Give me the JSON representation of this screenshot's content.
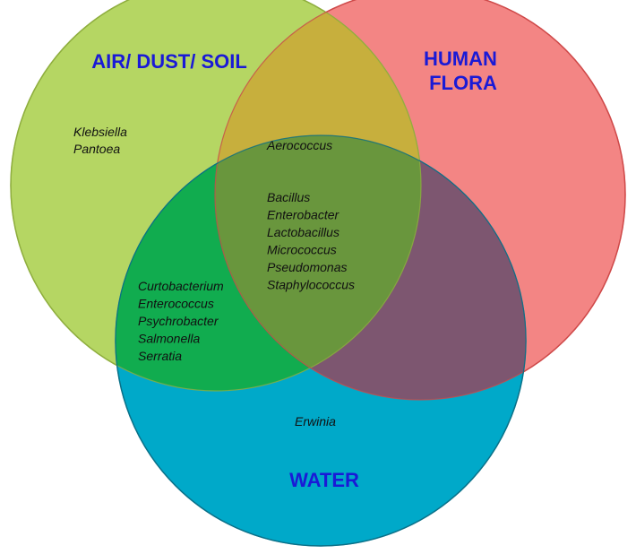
{
  "diagram": {
    "type": "venn",
    "sets": [
      {
        "id": "air",
        "title_lines": [
          "AIR/ DUST/ SOIL"
        ],
        "color": "#b5d663"
      },
      {
        "id": "human",
        "title_lines": [
          "HUMAN",
          "FLORA"
        ],
        "color": "#f38584"
      },
      {
        "id": "water",
        "title_lines": [
          "WATER"
        ],
        "color": "#00a9c9"
      }
    ],
    "title_color": "#1a1ad6",
    "regions": {
      "air_only": [
        "Klebsiella",
        "Pantoea"
      ],
      "air_human": [
        "Aerococcus"
      ],
      "all_three": [
        "Bacillus",
        "Enterobacter",
        "Lactobacillus",
        "Micrococcus",
        "Pseudomonas",
        "Staphylococcus"
      ],
      "air_water": [
        "Curtobacterium",
        "Enterococcus",
        "Psychrobacter",
        "Salmonella",
        "Serratia"
      ],
      "water_only": [
        "Erwinia"
      ]
    }
  }
}
